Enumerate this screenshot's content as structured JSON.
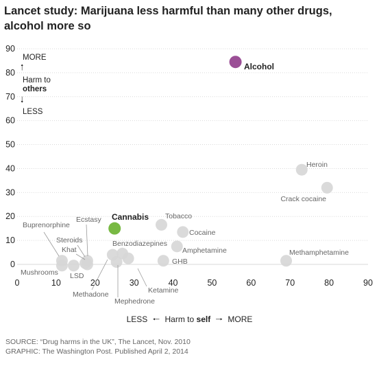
{
  "title": "Lancet study: Marijuana less harmful than many other drugs, alcohol more so",
  "colors": {
    "default_point": "#d6d6d6",
    "alcohol": "#9b4f96",
    "cannabis": "#78b943",
    "grid": "#d9d9d9",
    "label_gray": "#666666",
    "leader": "#999999"
  },
  "y_axis_annotation": {
    "more": "MORE",
    "harm_to": "Harm to",
    "others": "others",
    "less": "LESS"
  },
  "x_axis_annotation": {
    "less": "LESS",
    "harm_to": "Harm to",
    "self": "self",
    "more": "MORE"
  },
  "source_line": "SOURCE: “Drug harms in the UK”, The Lancet, Nov. 2010",
  "graphic_line": "GRAPHIC: The Washington Post. Published April 2, 2014",
  "chart_data": {
    "type": "scatter",
    "xlim": [
      0,
      90
    ],
    "ylim": [
      0,
      90
    ],
    "xticks": [
      0,
      10,
      20,
      30,
      40,
      50,
      60,
      70,
      80,
      90
    ],
    "yticks": [
      0,
      10,
      20,
      30,
      40,
      50,
      60,
      70,
      80,
      90
    ],
    "grid": "horizontal",
    "points": [
      {
        "label": "Alcohol",
        "x": 56,
        "y": 84.5,
        "highlight": "alcohol"
      },
      {
        "label": "Heroin",
        "x": 73,
        "y": 39.5
      },
      {
        "label": "Crack cocaine",
        "x": 79.5,
        "y": 32
      },
      {
        "label": "Cannabis",
        "x": 25,
        "y": 15,
        "highlight": "cannabis"
      },
      {
        "label": "Tobacco",
        "x": 37,
        "y": 16.5
      },
      {
        "label": "Cocaine",
        "x": 42.5,
        "y": 13.5
      },
      {
        "label": "Amphetamine",
        "x": 41,
        "y": 7.5
      },
      {
        "label": "Methamphetamine",
        "x": 69,
        "y": 1.5
      },
      {
        "label": "GHB",
        "x": 37.5,
        "y": 1.5
      },
      {
        "label": "Benzodiazepines",
        "x": 27,
        "y": 4.5
      },
      {
        "label": "Ketamine",
        "x": 28.5,
        "y": 2.5
      },
      {
        "label": "Mephedrone",
        "x": 25.5,
        "y": 1
      },
      {
        "label": "Methadone",
        "x": 24.5,
        "y": 4
      },
      {
        "label": "Ecstasy",
        "x": 18,
        "y": 1.5
      },
      {
        "label": "Steroids",
        "x": 17.5,
        "y": 0.5
      },
      {
        "label": "Khat",
        "x": 18,
        "y": 0
      },
      {
        "label": "Buprenorphine",
        "x": 11.5,
        "y": 1.5
      },
      {
        "label": "Mushrooms",
        "x": 11.5,
        "y": -0.5
      },
      {
        "label": "LSD",
        "x": 14.5,
        "y": -0.5
      }
    ]
  }
}
